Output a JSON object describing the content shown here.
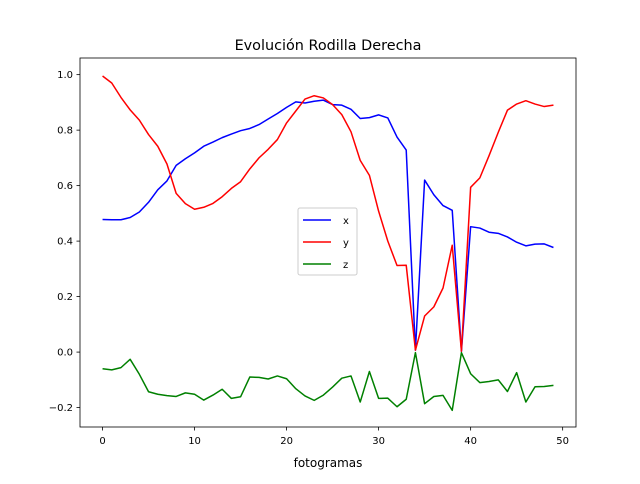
{
  "chart_data": {
    "type": "line",
    "title": "Evolución Rodilla Derecha",
    "xlabel": "fotogramas",
    "ylabel": "",
    "xlim": [
      -2.45,
      51.45
    ],
    "ylim": [
      -0.27,
      1.06
    ],
    "xticks": [
      0,
      10,
      20,
      30,
      40,
      50
    ],
    "xtick_labels": [
      "0",
      "10",
      "20",
      "30",
      "40",
      "50"
    ],
    "yticks": [
      -0.2,
      0.0,
      0.2,
      0.4,
      0.6,
      0.8,
      1.0
    ],
    "ytick_labels": [
      "−0.2",
      "0.0",
      "0.2",
      "0.4",
      "0.6",
      "0.8",
      "1.0"
    ],
    "grid": false,
    "legend": "center-right",
    "x": [
      0,
      1,
      2,
      3,
      4,
      5,
      6,
      7,
      8,
      9,
      10,
      11,
      12,
      13,
      14,
      15,
      16,
      17,
      18,
      19,
      20,
      21,
      22,
      23,
      24,
      25,
      26,
      27,
      28,
      29,
      30,
      31,
      32,
      33,
      34,
      35,
      36,
      37,
      38,
      39,
      40,
      41,
      42,
      43,
      44,
      45,
      46,
      47,
      48,
      49
    ],
    "series": [
      {
        "name": "x",
        "color": "#0000ff",
        "values": [
          0.478,
          0.477,
          0.477,
          0.485,
          0.505,
          0.54,
          0.585,
          0.617,
          0.673,
          0.697,
          0.718,
          0.742,
          0.757,
          0.773,
          0.786,
          0.798,
          0.806,
          0.82,
          0.84,
          0.86,
          0.882,
          0.902,
          0.898,
          0.904,
          0.908,
          0.892,
          0.89,
          0.875,
          0.842,
          0.845,
          0.855,
          0.844,
          0.775,
          0.728,
          0.007,
          0.62,
          0.567,
          0.528,
          0.511,
          0.003,
          0.452,
          0.447,
          0.432,
          0.428,
          0.415,
          0.396,
          0.383,
          0.389,
          0.39,
          0.377
        ]
      },
      {
        "name": "y",
        "color": "#ff0000",
        "values": [
          0.995,
          0.97,
          0.918,
          0.873,
          0.836,
          0.784,
          0.742,
          0.678,
          0.572,
          0.535,
          0.515,
          0.522,
          0.536,
          0.56,
          0.59,
          0.614,
          0.66,
          0.7,
          0.731,
          0.766,
          0.826,
          0.869,
          0.912,
          0.924,
          0.916,
          0.892,
          0.856,
          0.794,
          0.691,
          0.637,
          0.508,
          0.4,
          0.312,
          0.313,
          0.007,
          0.13,
          0.163,
          0.231,
          0.385,
          0.003,
          0.594,
          0.628,
          0.708,
          0.792,
          0.872,
          0.894,
          0.906,
          0.894,
          0.885,
          0.89
        ]
      },
      {
        "name": "z",
        "color": "#008000",
        "values": [
          -0.06,
          -0.064,
          -0.056,
          -0.026,
          -0.08,
          -0.143,
          -0.152,
          -0.157,
          -0.16,
          -0.147,
          -0.152,
          -0.173,
          -0.155,
          -0.134,
          -0.167,
          -0.161,
          -0.09,
          -0.091,
          -0.097,
          -0.086,
          -0.096,
          -0.132,
          -0.158,
          -0.174,
          -0.155,
          -0.126,
          -0.094,
          -0.086,
          -0.18,
          -0.07,
          -0.167,
          -0.166,
          -0.197,
          -0.17,
          -0.002,
          -0.186,
          -0.16,
          -0.156,
          -0.21,
          -0.002,
          -0.078,
          -0.11,
          -0.106,
          -0.1,
          -0.142,
          -0.074,
          -0.18,
          -0.125,
          -0.124,
          -0.12
        ]
      }
    ]
  }
}
